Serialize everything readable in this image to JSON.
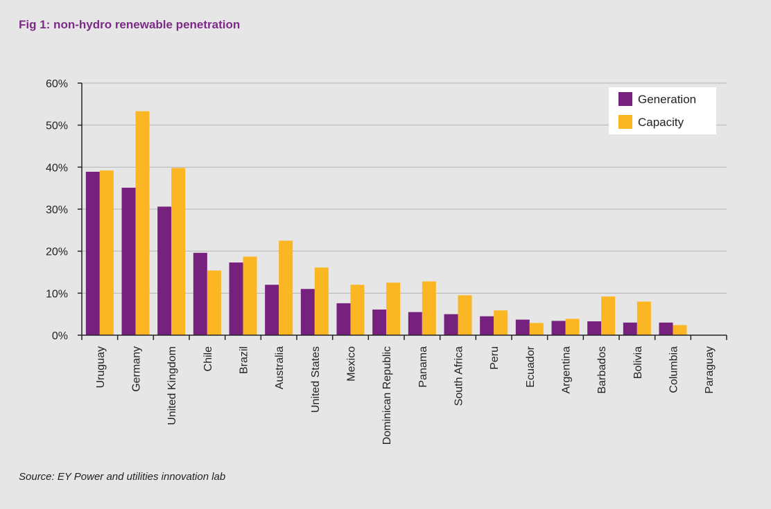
{
  "chart_data": {
    "type": "bar",
    "title": "Fig 1: non-hydro renewable penetration",
    "source": "Source:  EY Power and utilities innovation lab",
    "categories": [
      "Uruguay",
      "Germany",
      "United Kingdom",
      "Chile",
      "Brazil",
      "Australia",
      "United States",
      "Mexico",
      "Dominican Republic",
      "Panama",
      "South Africa",
      "Peru",
      "Ecuador",
      "Argentina",
      "Barbados",
      "Bolivia",
      "Columbia",
      "Paraguay"
    ],
    "series": [
      {
        "name": "Generation",
        "color": "#77217f",
        "values": [
          38.9,
          35.1,
          30.6,
          19.6,
          17.3,
          12.0,
          11.0,
          7.6,
          6.1,
          5.5,
          5.0,
          4.5,
          3.7,
          3.4,
          3.3,
          3.0,
          3.0,
          0
        ]
      },
      {
        "name": "Capacity",
        "color": "#fbb624",
        "values": [
          39.2,
          53.3,
          39.8,
          15.4,
          18.7,
          22.5,
          16.1,
          12.0,
          12.5,
          12.8,
          9.5,
          5.9,
          2.9,
          3.9,
          9.2,
          8.0,
          2.4,
          0
        ]
      }
    ],
    "ylim": [
      0,
      60
    ],
    "yticks": [
      0,
      10,
      20,
      30,
      40,
      50,
      60
    ],
    "ytick_labels": [
      "0%",
      "10%",
      "20%",
      "30%",
      "40%",
      "50%",
      "60%"
    ],
    "grid": true,
    "legend": "top-right"
  }
}
